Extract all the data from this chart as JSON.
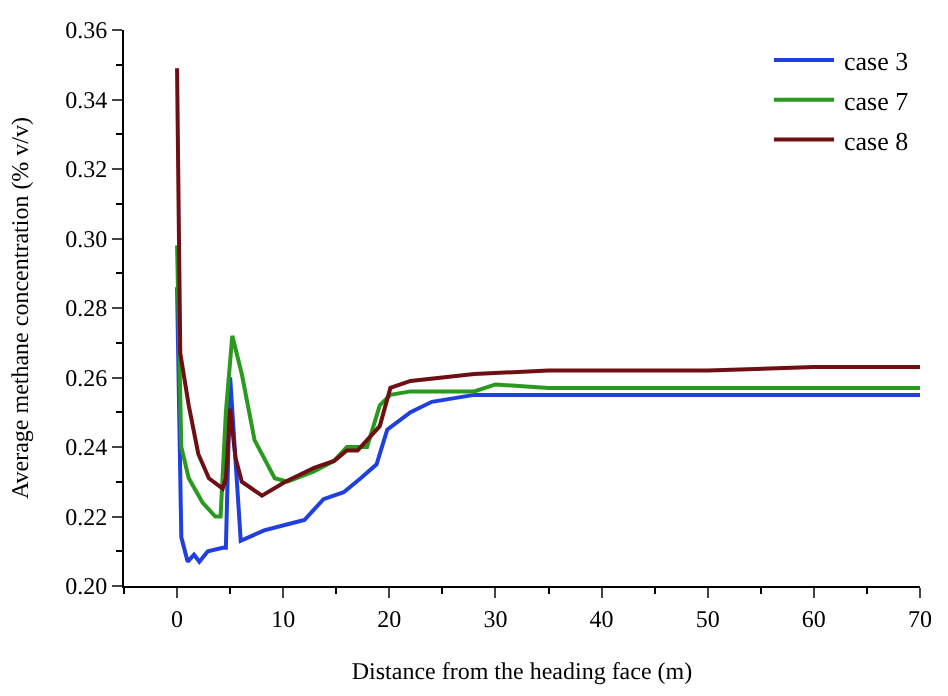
{
  "chart_data": {
    "type": "line",
    "xlabel": "Distance from the heading face (m)",
    "ylabel": "Average methane concentration (% v/v)",
    "xlim": [
      -5,
      70
    ],
    "xticks": [
      0,
      10,
      20,
      30,
      40,
      50,
      60,
      70
    ],
    "ylim": [
      0.2,
      0.36
    ],
    "yticks": [
      {
        "value": 0.2,
        "label": "0.20"
      },
      {
        "value": 0.22,
        "label": "0.22"
      },
      {
        "value": 0.24,
        "label": "0.24"
      },
      {
        "value": 0.26,
        "label": "0.26"
      },
      {
        "value": 0.28,
        "label": "0.28"
      },
      {
        "value": 0.3,
        "label": "0.30"
      },
      {
        "value": 0.32,
        "label": "0.32"
      },
      {
        "value": 0.34,
        "label": "0.34"
      },
      {
        "value": 0.36,
        "label": "0.36"
      }
    ],
    "legend": "top right",
    "marker": "none",
    "line_style": "solid",
    "series": [
      {
        "name": "case 3",
        "color": "#1f3fe0",
        "x": [
          0,
          0.4,
          1.0,
          1.6,
          2.1,
          2.9,
          4.3,
          4.6,
          5.0,
          6.0,
          8.2,
          10.7,
          12,
          13.8,
          15.7,
          17.3,
          18.8,
          19.8,
          22,
          24,
          28,
          30,
          40,
          50,
          60,
          70
        ],
        "values": [
          0.286,
          0.214,
          0.207,
          0.209,
          0.207,
          0.21,
          0.211,
          0.211,
          0.26,
          0.213,
          0.216,
          0.218,
          0.219,
          0.225,
          0.227,
          0.231,
          0.235,
          0.245,
          0.25,
          0.253,
          0.255,
          0.255,
          0.255,
          0.255,
          0.255,
          0.255
        ]
      },
      {
        "name": "case 7",
        "color": "#2a9a1e",
        "x": [
          0,
          0.4,
          1.1,
          2.4,
          3.6,
          4.1,
          4.6,
          5.2,
          6.1,
          7.3,
          9.2,
          10.4,
          12.9,
          14.8,
          16,
          17.9,
          19.1,
          20.1,
          22,
          28,
          30,
          35,
          40,
          50,
          60,
          70
        ],
        "values": [
          0.298,
          0.24,
          0.231,
          0.224,
          0.22,
          0.22,
          0.25,
          0.272,
          0.261,
          0.242,
          0.231,
          0.23,
          0.233,
          0.236,
          0.24,
          0.24,
          0.252,
          0.255,
          0.256,
          0.256,
          0.258,
          0.257,
          0.257,
          0.257,
          0.257,
          0.257
        ]
      },
      {
        "name": "case 8",
        "color": "#6e0f14",
        "x": [
          0,
          0.3,
          1.1,
          2.0,
          3.0,
          4.3,
          4.6,
          5.0,
          5.5,
          6.1,
          8,
          10.2,
          12.9,
          14.8,
          16,
          17,
          17.9,
          19.1,
          20.1,
          22,
          28,
          35,
          40,
          50,
          60,
          70
        ],
        "values": [
          0.349,
          0.267,
          0.252,
          0.238,
          0.231,
          0.228,
          0.231,
          0.251,
          0.237,
          0.23,
          0.226,
          0.23,
          0.234,
          0.236,
          0.239,
          0.239,
          0.242,
          0.246,
          0.257,
          0.259,
          0.261,
          0.262,
          0.262,
          0.262,
          0.263,
          0.263
        ]
      }
    ]
  }
}
